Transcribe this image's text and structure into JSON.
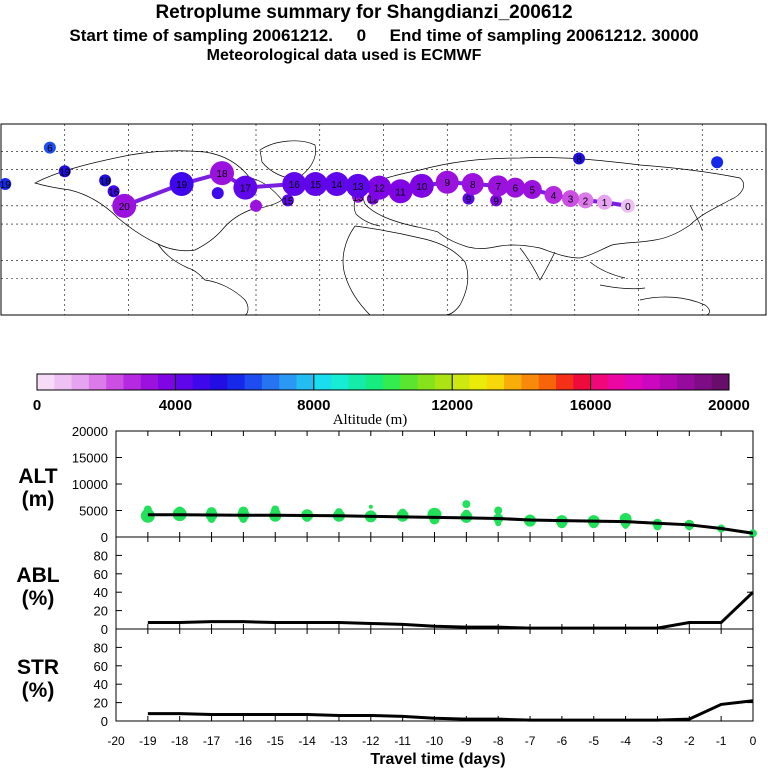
{
  "header": {
    "title": "Retroplume summary for Shangdianzi_200612",
    "sampling": "Start time of sampling 20061212.     0     End time of sampling 20061212. 30000",
    "meteo": "Meteorological data used is ECMWF"
  },
  "map": {
    "track_color": "#7a1fe0",
    "plume": [
      {
        "lon": 115,
        "lat": 40,
        "alt": 800,
        "label": "0"
      },
      {
        "lon": 104,
        "lat": 42,
        "alt": 1200,
        "label": "1"
      },
      {
        "lon": 95,
        "lat": 43,
        "alt": 1800,
        "label": "2"
      },
      {
        "lon": 88,
        "lat": 44,
        "alt": 2400,
        "label": "3"
      },
      {
        "lon": 80,
        "lat": 46,
        "alt": 2700,
        "label": "4"
      },
      {
        "lon": 70,
        "lat": 49,
        "alt": 3000,
        "label": "5"
      },
      {
        "lon": 62,
        "lat": 50,
        "alt": 3000,
        "label": "6"
      },
      {
        "lon": 54,
        "lat": 51,
        "alt": 3200,
        "label": "7"
      },
      {
        "lon": 42,
        "lat": 52,
        "alt": 3300,
        "label": "8"
      },
      {
        "lon": 30,
        "lat": 53,
        "alt": 3400,
        "label": "9"
      },
      {
        "lon": 18,
        "lat": 51,
        "alt": 3500,
        "label": "10"
      },
      {
        "lon": 8,
        "lat": 48,
        "alt": 3700,
        "label": "11"
      },
      {
        "lon": -2,
        "lat": 50,
        "alt": 3800,
        "label": "12"
      },
      {
        "lon": -12,
        "lat": 51,
        "alt": 4000,
        "label": "13"
      },
      {
        "lon": -22,
        "lat": 52,
        "alt": 4100,
        "label": "14"
      },
      {
        "lon": -32,
        "lat": 52,
        "alt": 4200,
        "label": "15"
      },
      {
        "lon": -42,
        "lat": 52,
        "alt": 4200,
        "label": "16"
      },
      {
        "lon": -65,
        "lat": 50,
        "alt": 4400,
        "label": "17"
      },
      {
        "lon": -76,
        "lat": 58,
        "alt": 3400,
        "label": "18"
      },
      {
        "lon": -95,
        "lat": 52,
        "alt": 4600,
        "label": "19"
      },
      {
        "lon": -122,
        "lat": 40,
        "alt": 3400,
        "label": "20"
      }
    ],
    "scattered": [
      {
        "lon": 92,
        "lat": 66,
        "alt": 5200,
        "label": "8"
      },
      {
        "lon": 157,
        "lat": 64,
        "alt": 5600,
        "label": ""
      },
      {
        "lon": -157,
        "lat": 72,
        "alt": 6000,
        "label": "6"
      },
      {
        "lon": -178,
        "lat": 52,
        "alt": 5800,
        "label": "19"
      },
      {
        "lon": -150,
        "lat": 59,
        "alt": 5200,
        "label": "19"
      },
      {
        "lon": -131,
        "lat": 54,
        "alt": 5000,
        "label": "18"
      },
      {
        "lon": -127,
        "lat": 48,
        "alt": 4800,
        "label": "16"
      },
      {
        "lon": -45,
        "lat": 43,
        "alt": 4400,
        "label": "15"
      },
      {
        "lon": -78,
        "lat": 47,
        "alt": 4600,
        "label": ""
      },
      {
        "lon": 40,
        "lat": 44,
        "alt": 4400,
        "label": "9"
      },
      {
        "lon": 53,
        "lat": 43,
        "alt": 3800,
        "label": "9"
      },
      {
        "lon": 10,
        "lat": 47,
        "alt": 3800,
        "label": "12"
      },
      {
        "lon": -5,
        "lat": 44,
        "alt": 3500,
        "label": "12"
      },
      {
        "lon": -12,
        "lat": 45,
        "alt": 3300,
        "label": "13"
      },
      {
        "lon": -60,
        "lat": 40,
        "alt": 3200,
        "label": ""
      }
    ]
  },
  "colorbar": {
    "colors": [
      "#f7dcf7",
      "#efc0f3",
      "#e6a3ef",
      "#dc7ae9",
      "#cc4fe4",
      "#b52ae0",
      "#9b12df",
      "#7f05e4",
      "#5f06ea",
      "#3f07ec",
      "#220de3",
      "#1628ea",
      "#1f4cf0",
      "#2774f3",
      "#2b98f4",
      "#24bdf2",
      "#1bddf0",
      "#17ecd4",
      "#15ecaa",
      "#17ec7e",
      "#33ec50",
      "#5ce530",
      "#86e31b",
      "#abe313",
      "#cde711",
      "#ebeb0a",
      "#f7d80a",
      "#f7ae0a",
      "#f78a0a",
      "#f7640a",
      "#f53018",
      "#ee0a3a",
      "#f0087a",
      "#ec07a2",
      "#e006bb",
      "#cc07c0",
      "#b208b2",
      "#960a9e",
      "#7e0c85",
      "#680e6a"
    ],
    "ticks": [
      "0",
      "4000",
      "8000",
      "12000",
      "16000",
      "20000"
    ],
    "label": "Altitude (m)"
  },
  "chart_data": [
    {
      "type": "line",
      "name": "ALT",
      "ylabel_line1": "ALT",
      "ylabel_line2": "(m)",
      "yticks": [
        "0",
        "5000",
        "10000",
        "15000",
        "20000"
      ],
      "ylim": [
        0,
        20000
      ],
      "x": [
        -19,
        -18,
        -17,
        -16,
        -15,
        -14,
        -13,
        -12,
        -11,
        -10,
        -9,
        -8,
        -7,
        -6,
        -5,
        -4,
        -3,
        -2,
        -1,
        0
      ],
      "series": [
        {
          "name": "mean altitude",
          "values": [
            4200,
            4200,
            4150,
            4100,
            4100,
            4050,
            4000,
            3900,
            3800,
            3700,
            3600,
            3500,
            3200,
            3100,
            3000,
            2900,
            2600,
            2300,
            1600,
            700
          ]
        }
      ],
      "scatter": [
        {
          "x": -19,
          "y": 4000,
          "size": 7
        },
        {
          "x": -19,
          "y": 5200,
          "size": 4
        },
        {
          "x": -18,
          "y": 4300,
          "size": 7
        },
        {
          "x": -18,
          "y": 4800,
          "size": 5
        },
        {
          "x": -17,
          "y": 4200,
          "size": 6
        },
        {
          "x": -17,
          "y": 4700,
          "size": 5
        },
        {
          "x": -17,
          "y": 3400,
          "size": 4
        },
        {
          "x": -16,
          "y": 4200,
          "size": 6
        },
        {
          "x": -16,
          "y": 4800,
          "size": 5
        },
        {
          "x": -16,
          "y": 3400,
          "size": 4
        },
        {
          "x": -15,
          "y": 4000,
          "size": 6
        },
        {
          "x": -15,
          "y": 4600,
          "size": 5
        },
        {
          "x": -15,
          "y": 5200,
          "size": 4
        },
        {
          "x": -14,
          "y": 4100,
          "size": 6
        },
        {
          "x": -14,
          "y": 3600,
          "size": 4
        },
        {
          "x": -13,
          "y": 4000,
          "size": 6
        },
        {
          "x": -13,
          "y": 4700,
          "size": 4
        },
        {
          "x": -12,
          "y": 3900,
          "size": 6
        },
        {
          "x": -12,
          "y": 5700,
          "size": 2
        },
        {
          "x": -11,
          "y": 4000,
          "size": 6
        },
        {
          "x": -11,
          "y": 4600,
          "size": 4
        },
        {
          "x": -10,
          "y": 4200,
          "size": 7
        },
        {
          "x": -10,
          "y": 3300,
          "size": 5
        },
        {
          "x": -9,
          "y": 3800,
          "size": 6
        },
        {
          "x": -9,
          "y": 6200,
          "size": 4
        },
        {
          "x": -9,
          "y": 4400,
          "size": 4
        },
        {
          "x": -8,
          "y": 3500,
          "size": 5
        },
        {
          "x": -8,
          "y": 5000,
          "size": 4
        },
        {
          "x": -8,
          "y": 2600,
          "size": 3
        },
        {
          "x": -7,
          "y": 3100,
          "size": 6
        },
        {
          "x": -7,
          "y": 3500,
          "size": 4
        },
        {
          "x": -6,
          "y": 3000,
          "size": 6
        },
        {
          "x": -6,
          "y": 2600,
          "size": 5
        },
        {
          "x": -5,
          "y": 3000,
          "size": 6
        },
        {
          "x": -5,
          "y": 2600,
          "size": 5
        },
        {
          "x": -4,
          "y": 3400,
          "size": 6
        },
        {
          "x": -4,
          "y": 2700,
          "size": 5
        },
        {
          "x": -4,
          "y": 2100,
          "size": 3
        },
        {
          "x": -3,
          "y": 2500,
          "size": 5
        },
        {
          "x": -3,
          "y": 2000,
          "size": 4
        },
        {
          "x": -2,
          "y": 2300,
          "size": 5
        },
        {
          "x": -2,
          "y": 1800,
          "size": 3
        },
        {
          "x": -1,
          "y": 1600,
          "size": 4
        },
        {
          "x": 0,
          "y": 700,
          "size": 4
        }
      ]
    },
    {
      "type": "line",
      "name": "ABL",
      "ylabel_line1": "ABL",
      "ylabel_line2": "(%)",
      "yticks": [
        "0",
        "20",
        "40",
        "60",
        "80"
      ],
      "ylim": [
        0,
        100
      ],
      "x": [
        -19,
        -18,
        -17,
        -16,
        -15,
        -14,
        -13,
        -12,
        -11,
        -10,
        -9,
        -8,
        -7,
        -6,
        -5,
        -4,
        -3,
        -2,
        -1,
        0
      ],
      "series": [
        {
          "name": "fraction in ABL",
          "values": [
            7,
            7,
            8,
            8,
            7,
            7,
            7,
            6,
            5,
            3,
            2,
            2,
            1,
            1,
            1,
            1,
            1,
            7,
            7,
            40
          ]
        }
      ]
    },
    {
      "type": "line",
      "name": "STR",
      "ylabel_line1": "STR",
      "ylabel_line2": "(%)",
      "yticks": [
        "0",
        "20",
        "40",
        "60",
        "80"
      ],
      "ylim": [
        0,
        100
      ],
      "x": [
        -19,
        -18,
        -17,
        -16,
        -15,
        -14,
        -13,
        -12,
        -11,
        -10,
        -9,
        -8,
        -7,
        -6,
        -5,
        -4,
        -3,
        -2,
        -1,
        0
      ],
      "series": [
        {
          "name": "fraction in stratosphere",
          "values": [
            8,
            8,
            7,
            7,
            7,
            7,
            6,
            6,
            5,
            3,
            2,
            2,
            1,
            1,
            1,
            1,
            1,
            2,
            18,
            22
          ]
        }
      ]
    }
  ],
  "xaxis": {
    "ticks": [
      "-20",
      "-19",
      "-18",
      "-17",
      "-16",
      "-15",
      "-14",
      "-13",
      "-12",
      "-11",
      "-10",
      "-9",
      "-8",
      "-7",
      "-6",
      "-5",
      "-4",
      "-3",
      "-2",
      "-1",
      "0"
    ],
    "label": "Travel time (days)"
  }
}
